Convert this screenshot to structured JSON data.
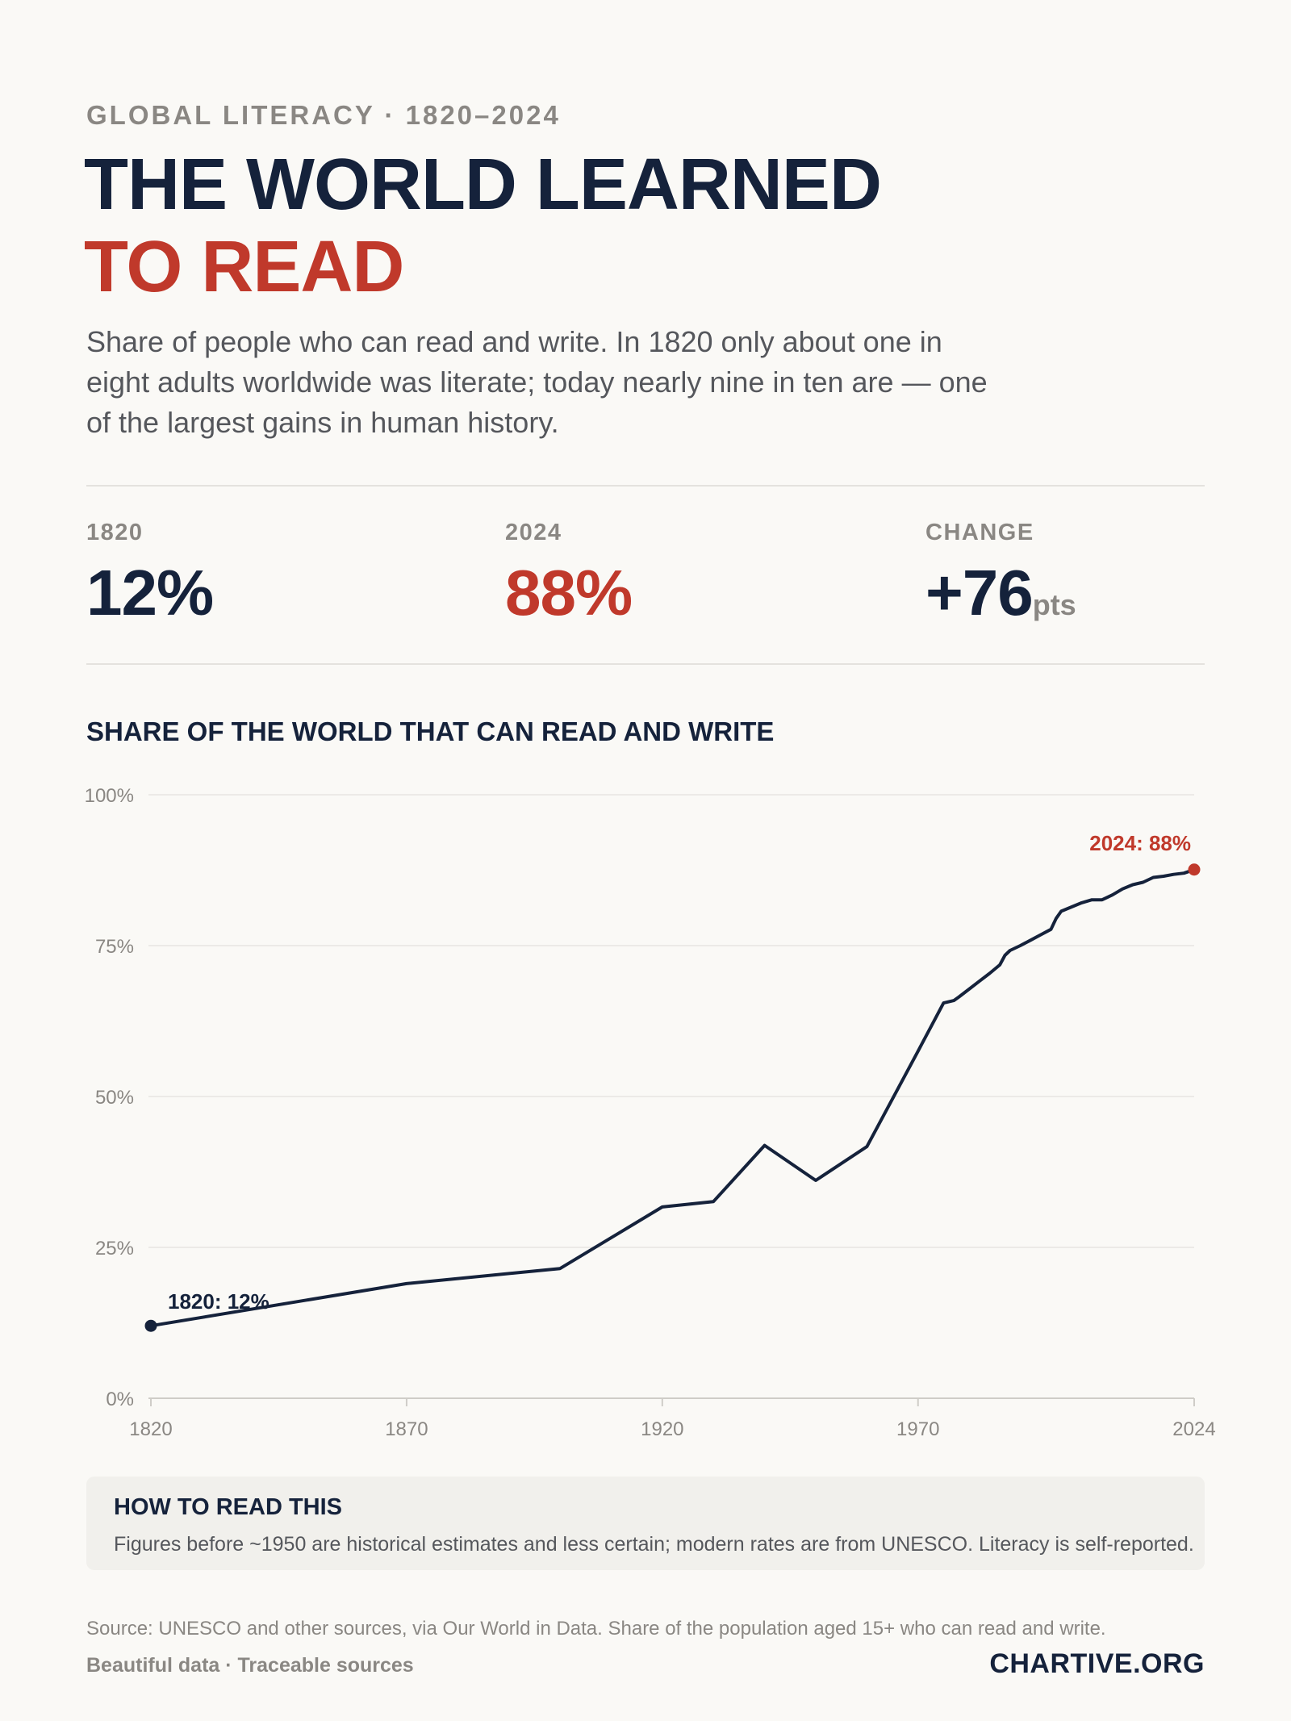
{
  "header": {
    "kicker": "GLOBAL LITERACY · 1820–2024",
    "title_line1": "THE WORLD LEARNED",
    "title_line2": "TO READ",
    "lede": "Share of people who can read and write. In 1820 only about one in eight adults worldwide was literate; today nearly nine in ten are — one of the largest gains in human history."
  },
  "stats": [
    {
      "label": "1820",
      "value": "12%",
      "unit": ""
    },
    {
      "label": "2024",
      "value": "88%",
      "unit": ""
    },
    {
      "label": "CHANGE",
      "value": "+76",
      "unit": "pts"
    }
  ],
  "chart_data": {
    "type": "line",
    "title": "SHARE OF THE WORLD THAT CAN READ AND WRITE",
    "xlabel": "",
    "ylabel": "",
    "xlim": [
      1820,
      2024
    ],
    "ylim": [
      0,
      100
    ],
    "x_ticks": [
      1820,
      1870,
      1920,
      1970,
      2024
    ],
    "y_ticks": [
      0,
      25,
      50,
      75,
      100
    ],
    "y_tick_labels": [
      "0%",
      "25%",
      "50%",
      "75%",
      "100%"
    ],
    "grid": true,
    "series": [
      {
        "color": "#15223b",
        "x": [
          1820,
          1870,
          1900,
          1920,
          1930,
          1940,
          1950,
          1960,
          1970,
          1975,
          1976,
          1977,
          1978,
          1980,
          1982,
          1984,
          1986,
          1987,
          1988,
          1990,
          1992,
          1994,
          1996,
          1997,
          1998,
          2000,
          2002,
          2004,
          2006,
          2008,
          2010,
          2012,
          2014,
          2016,
          2018,
          2020,
          2022,
          2024
        ],
        "y": [
          12,
          19,
          21.5,
          31.7,
          32.6,
          41.9,
          36.1,
          41.7,
          57.5,
          65.5,
          65.7,
          65.9,
          66.5,
          67.8,
          69.1,
          70.4,
          71.8,
          73.4,
          74.2,
          75.0,
          75.9,
          76.8,
          77.7,
          79.5,
          80.7,
          81.4,
          82.1,
          82.6,
          82.6,
          83.4,
          84.4,
          85.1,
          85.5,
          86.3,
          86.5,
          86.8,
          87.0,
          87.6
        ]
      }
    ],
    "annotations": [
      {
        "x": 1820,
        "y": 12,
        "label": "1820: 12%",
        "color": "#15223b"
      },
      {
        "x": 2024,
        "y": 88,
        "label": "2024: 88%",
        "color": "#c0392b"
      }
    ]
  },
  "note": {
    "title": "HOW TO READ THIS",
    "body": "Figures before ~1950 are historical estimates and less certain; modern rates are from UNESCO. Literacy is self-reported."
  },
  "footer": {
    "source": "Source: UNESCO and other sources, via Our World in Data. Share of the population aged 15+ who can read and write.",
    "tagline": "Beautiful data · Traceable sources",
    "brand": "CHARTIVE.ORG"
  }
}
